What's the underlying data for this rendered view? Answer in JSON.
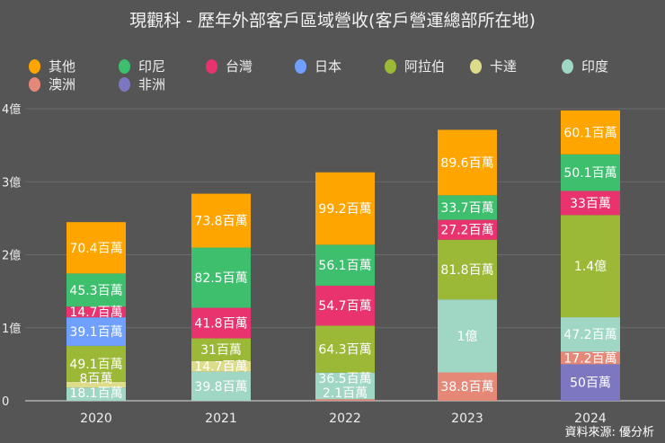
{
  "chart_data": {
    "type": "bar",
    "stacked": true,
    "title": "現觀科 - 歷年外部客戶區域營收(客戶營運總部所在地)",
    "unit": "百萬",
    "categories": [
      "2020",
      "2021",
      "2022",
      "2023",
      "2024"
    ],
    "ylim": [
      0,
      400
    ],
    "yticks": [
      {
        "value": 0,
        "label": "0"
      },
      {
        "value": 100,
        "label": "1億"
      },
      {
        "value": 200,
        "label": "2億"
      },
      {
        "value": 300,
        "label": "3億"
      },
      {
        "value": 400,
        "label": "4億"
      }
    ],
    "grid": true,
    "legend_position": "top",
    "series": [
      {
        "name": "非洲",
        "color": "#7d76c0",
        "values": [
          null,
          null,
          null,
          null,
          50
        ],
        "labels": [
          null,
          null,
          null,
          null,
          "50百萬"
        ]
      },
      {
        "name": "澳洲",
        "color": "#e58878",
        "values": [
          null,
          null,
          2.1,
          38.8,
          17.2
        ],
        "labels": [
          null,
          null,
          "2.1百萬",
          "38.8百萬",
          "17.2百萬"
        ]
      },
      {
        "name": "印度",
        "color": "#a0d6c4",
        "values": [
          18.1,
          39.8,
          36.5,
          100,
          47.2
        ],
        "labels": [
          "18.1百萬",
          "39.8百萬",
          "36.5百萬",
          "1億",
          "47.2百萬"
        ]
      },
      {
        "name": "卡達",
        "color": "#dcdc8a",
        "values": [
          8,
          14.7,
          null,
          null,
          null
        ],
        "labels": [
          "8百萬",
          "14.7百萬",
          null,
          null,
          null
        ]
      },
      {
        "name": "阿拉伯",
        "color": "#9bb836",
        "values": [
          49.1,
          31,
          64.3,
          81.8,
          140
        ],
        "labels": [
          "49.1百萬",
          "31百萬",
          "64.3百萬",
          "81.8百萬",
          "1.4億"
        ]
      },
      {
        "name": "日本",
        "color": "#6fa0ff",
        "values": [
          39.1,
          null,
          null,
          null,
          null
        ],
        "labels": [
          "39.1百萬",
          null,
          null,
          null,
          null
        ]
      },
      {
        "name": "台灣",
        "color": "#e8336f",
        "values": [
          14.7,
          41.8,
          54.7,
          27.2,
          33
        ],
        "labels": [
          "14.7百萬",
          "41.8百萬",
          "54.7百萬",
          "27.2百萬",
          "33百萬"
        ]
      },
      {
        "name": "印尼",
        "color": "#3dbf6e",
        "values": [
          45.3,
          82.5,
          56.1,
          33.7,
          50.1
        ],
        "labels": [
          "45.3百萬",
          "82.5百萬",
          "56.1百萬",
          "33.7百萬",
          "50.1百萬"
        ]
      },
      {
        "name": "其他",
        "color": "#ffa500",
        "values": [
          70.4,
          73.8,
          99.2,
          89.6,
          60.1
        ],
        "labels": [
          "70.4百萬",
          "73.8百萬",
          "99.2百萬",
          "89.6百萬",
          "60.1百萬"
        ]
      }
    ],
    "legend_order": [
      "其他",
      "印尼",
      "台灣",
      "日本",
      "阿拉伯",
      "卡達",
      "印度",
      "澳洲",
      "非洲"
    ]
  },
  "source": "資料來源: 優分析"
}
